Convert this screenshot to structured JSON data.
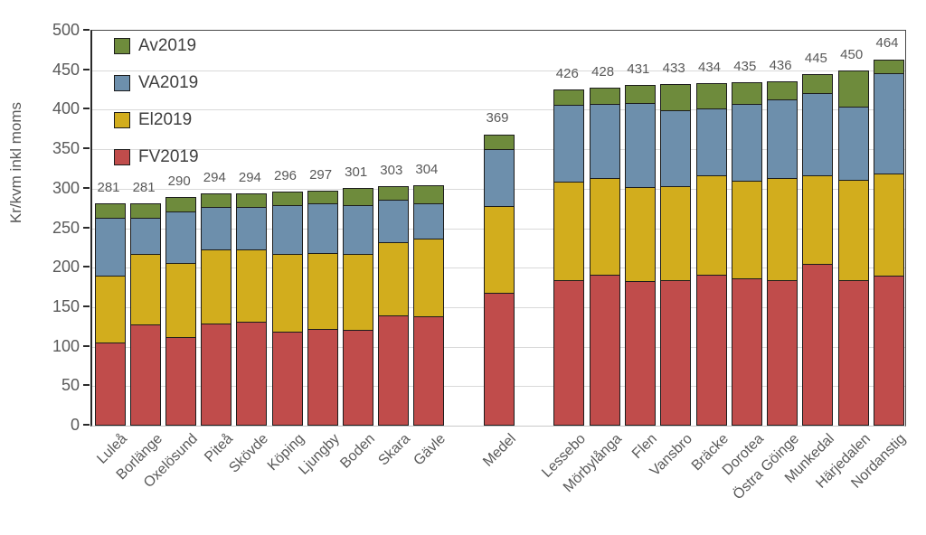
{
  "chart_data": {
    "type": "bar",
    "stacked": true,
    "title": "",
    "ylabel": "Kr/kvm inkl moms",
    "xlabel": "",
    "ylim": [
      0,
      500
    ],
    "ytick_step": 50,
    "yticks": [
      0,
      50,
      100,
      150,
      200,
      250,
      300,
      350,
      400,
      450,
      500
    ],
    "grid": true,
    "legend_position": "top-left-inside",
    "legend_order": [
      "Av2019",
      "VA2019",
      "El2019",
      "FV2019"
    ],
    "stack_order_bottom_to_top": [
      "FV2019",
      "El2019",
      "VA2019",
      "Av2019"
    ],
    "categories": [
      "Luleå",
      "Borlänge",
      "Oxelösund",
      "Piteå",
      "Skövde",
      "Köping",
      "Ljungby",
      "Boden",
      "Skara",
      "Gävle",
      "Medel",
      "Lessebo",
      "Mörbylånga",
      "Flen",
      "Vansbro",
      "Bräcke",
      "Dorotea",
      "Östra Göinge",
      "Munkedal",
      "Härjedalen",
      "Nordanstig"
    ],
    "group_sizes": [
      10,
      1,
      10
    ],
    "totals": [
      281,
      281,
      290,
      294,
      294,
      296,
      297,
      301,
      303,
      304,
      369,
      426,
      428,
      431,
      433,
      434,
      435,
      436,
      445,
      450,
      464
    ],
    "series": [
      {
        "name": "FV2019",
        "color": "#c04c4b",
        "values": [
          104,
          127,
          111,
          128,
          130,
          117,
          121,
          120,
          138,
          137,
          166,
          183,
          189,
          181,
          182,
          189,
          185,
          183,
          203,
          182,
          188
        ]
      },
      {
        "name": "El2019",
        "color": "#d2ad1d",
        "values": [
          84,
          89,
          93,
          93,
          91,
          99,
          96,
          96,
          93,
          98,
          110,
          124,
          123,
          119,
          119,
          126,
          123,
          129,
          112,
          127,
          129
        ]
      },
      {
        "name": "VA2019",
        "color": "#6d8fac",
        "values": [
          73,
          45,
          65,
          54,
          54,
          62,
          63,
          62,
          53,
          45,
          72,
          98,
          94,
          107,
          97,
          85,
          98,
          99,
          104,
          93,
          128
        ]
      },
      {
        "name": "Av2019",
        "color": "#6e8b3c",
        "values": [
          20,
          20,
          21,
          19,
          19,
          18,
          17,
          23,
          19,
          24,
          21,
          21,
          22,
          24,
          35,
          34,
          29,
          25,
          26,
          48,
          19
        ]
      }
    ]
  },
  "colors": {
    "fv2019": "#c04c4b",
    "el2019": "#d2ad1d",
    "va2019": "#6d8fac",
    "av2019": "#6e8b3c",
    "segment_border": "#1c1c1c",
    "gridline": "#d9d9d9",
    "axis_line": "#2a2a2a",
    "tick_text": "#595959",
    "legend_text": "#3f3f3f"
  }
}
